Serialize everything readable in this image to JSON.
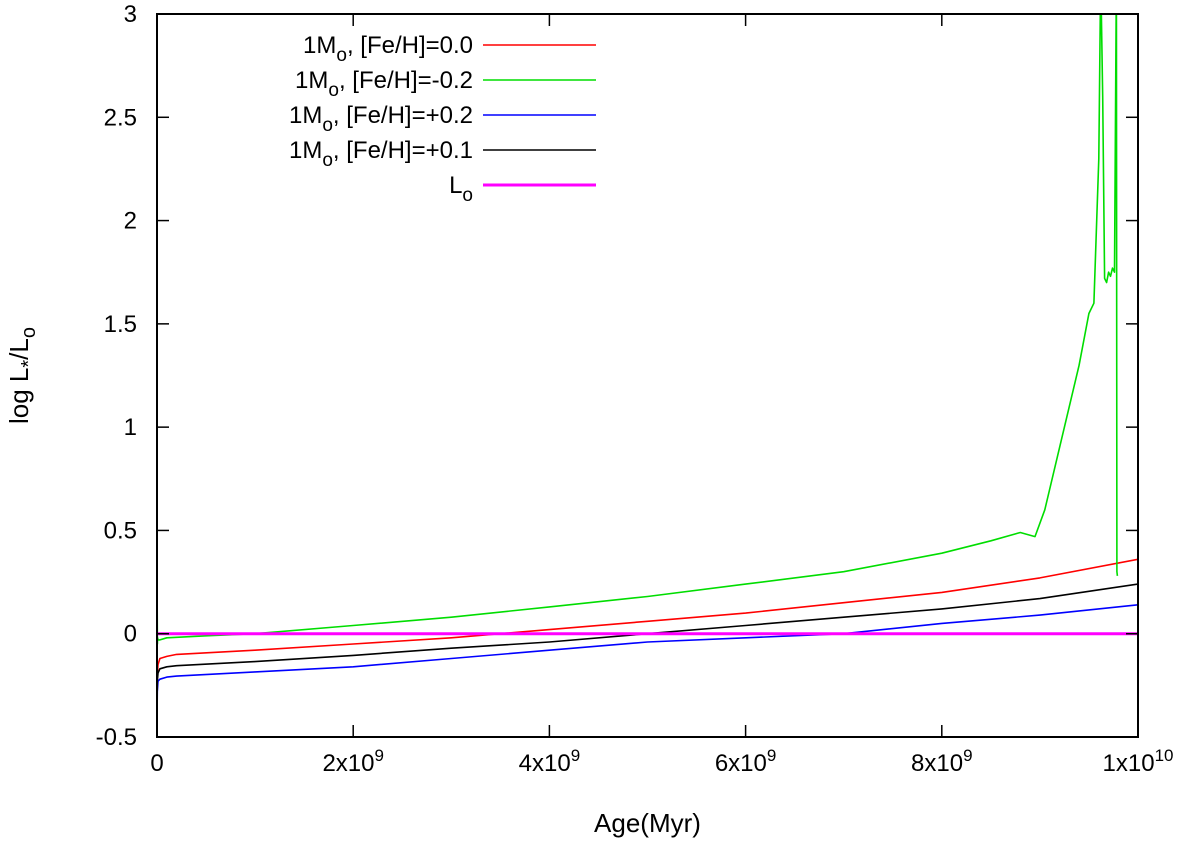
{
  "chart_data": {
    "type": "line",
    "title": "",
    "xlabel": "Age(Myr)",
    "ylabel": "log L*/Lo",
    "xlim": [
      0,
      10000000000
    ],
    "ylim": [
      -0.5,
      3
    ],
    "grid": false,
    "legend_position": "top-left",
    "xticks": [
      {
        "value": 0,
        "base": "0",
        "exp": ""
      },
      {
        "value": 2000000000,
        "base": "2x10",
        "exp": "9"
      },
      {
        "value": 4000000000,
        "base": "4x10",
        "exp": "9"
      },
      {
        "value": 6000000000,
        "base": "6x10",
        "exp": "9"
      },
      {
        "value": 8000000000,
        "base": "8x10",
        "exp": "9"
      },
      {
        "value": 10000000000,
        "base": "1x10",
        "exp": "10"
      }
    ],
    "yticks": [
      {
        "value": -0.5,
        "label": "-0.5"
      },
      {
        "value": 0,
        "label": "0"
      },
      {
        "value": 0.5,
        "label": "0.5"
      },
      {
        "value": 1,
        "label": "1"
      },
      {
        "value": 1.5,
        "label": "1.5"
      },
      {
        "value": 2,
        "label": "2"
      },
      {
        "value": 2.5,
        "label": "2.5"
      },
      {
        "value": 3,
        "label": "3"
      }
    ],
    "series": [
      {
        "name": "1Mo, [Fe/H]=0.0",
        "legend_main": "1M",
        "legend_sub": "o",
        "legend_rest": ", [Fe/H]=0.0",
        "color": "#ff0000",
        "x": [
          0,
          3000000,
          10000000,
          30000000,
          100000000,
          200000000,
          1000000000,
          2000000000,
          3000000000,
          4000000000,
          5000000000,
          6000000000,
          7000000000,
          8000000000,
          9000000000,
          10000000000
        ],
        "y": [
          -0.35,
          -0.2,
          -0.15,
          -0.12,
          -0.11,
          -0.1,
          -0.08,
          -0.05,
          -0.02,
          0.02,
          0.06,
          0.1,
          0.15,
          0.2,
          0.27,
          0.36
        ]
      },
      {
        "name": "1Mo, [Fe/H]=-0.2",
        "legend_main": "1M",
        "legend_sub": "o",
        "legend_rest": ", [Fe/H]=-0.2",
        "color": "#00dd00",
        "x": [
          0,
          2000000,
          4000000,
          6000000,
          10000000,
          30000000,
          100000000,
          500000000,
          1000000000,
          2000000000,
          3000000000,
          4000000000,
          5000000000,
          6000000000,
          7000000000,
          8000000000,
          8500000000,
          8800000000,
          8950000000,
          9050000000,
          9200000000,
          9400000000,
          9500000000,
          9550000000,
          9600000000,
          9620000000,
          9640000000,
          9660000000,
          9680000000,
          9700000000,
          9720000000,
          9740000000,
          9760000000,
          9780000000,
          9785000000,
          9790000000
        ],
        "y": [
          -0.4,
          0.12,
          -0.05,
          -0.02,
          -0.03,
          -0.03,
          -0.02,
          -0.01,
          0.0,
          0.04,
          0.08,
          0.13,
          0.18,
          0.24,
          0.3,
          0.39,
          0.45,
          0.49,
          0.47,
          0.6,
          0.9,
          1.3,
          1.55,
          1.6,
          2.3,
          3.2,
          2.6,
          1.72,
          1.7,
          1.75,
          1.73,
          1.77,
          1.75,
          3.2,
          0.3,
          0.28
        ]
      },
      {
        "name": "1Mo, [Fe/H]=+0.2",
        "legend_main": "1M",
        "legend_sub": "o",
        "legend_rest": ", [Fe/H]=+0.2",
        "color": "#0000ff",
        "x": [
          0,
          3000000,
          10000000,
          30000000,
          100000000,
          200000000,
          1000000000,
          2000000000,
          3000000000,
          4000000000,
          5000000000,
          6000000000,
          7000000000,
          8000000000,
          9000000000,
          10000000000
        ],
        "y": [
          -0.42,
          -0.28,
          -0.23,
          -0.22,
          -0.21,
          -0.205,
          -0.185,
          -0.16,
          -0.12,
          -0.08,
          -0.04,
          -0.02,
          0.0,
          0.05,
          0.09,
          0.14
        ]
      },
      {
        "name": "1Mo, [Fe/H]=+0.1",
        "legend_main": "1M",
        "legend_sub": "o",
        "legend_rest": ", [Fe/H]=+0.1",
        "color": "#000000",
        "x": [
          0,
          3000000,
          10000000,
          30000000,
          100000000,
          200000000,
          1000000000,
          2000000000,
          3000000000,
          4000000000,
          5000000000,
          6000000000,
          7000000000,
          8000000000,
          9000000000,
          10000000000
        ],
        "y": [
          -0.38,
          -0.23,
          -0.19,
          -0.17,
          -0.16,
          -0.155,
          -0.135,
          -0.105,
          -0.07,
          -0.04,
          0.0,
          0.04,
          0.08,
          0.12,
          0.17,
          0.24
        ]
      },
      {
        "name": "Lo",
        "legend_main": "L",
        "legend_sub": "o",
        "legend_rest": "",
        "color": "#ff00ff",
        "x": [
          0,
          10000000000
        ],
        "y": [
          0,
          0
        ]
      }
    ]
  }
}
